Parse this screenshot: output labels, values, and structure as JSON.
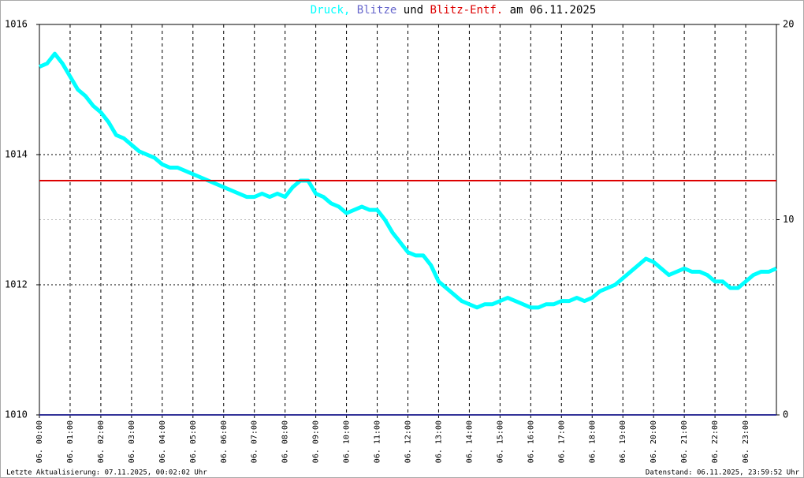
{
  "chart_data": {
    "type": "line",
    "title_connectors": [
      "und",
      "am 06.11.2025"
    ],
    "xlim": [
      0,
      24
    ],
    "xticks": [
      {
        "value": 0,
        "label": "06. 00:00"
      },
      {
        "value": 1,
        "label": "06. 01:00"
      },
      {
        "value": 2,
        "label": "06. 02:00"
      },
      {
        "value": 3,
        "label": "06. 03:00"
      },
      {
        "value": 4,
        "label": "06. 04:00"
      },
      {
        "value": 5,
        "label": "06. 05:00"
      },
      {
        "value": 6,
        "label": "06. 06:00"
      },
      {
        "value": 7,
        "label": "06. 07:00"
      },
      {
        "value": 8,
        "label": "06. 08:00"
      },
      {
        "value": 9,
        "label": "06. 09:00"
      },
      {
        "value": 10,
        "label": "06. 10:00"
      },
      {
        "value": 11,
        "label": "06. 11:00"
      },
      {
        "value": 12,
        "label": "06. 12:00"
      },
      {
        "value": 13,
        "label": "06. 13:00"
      },
      {
        "value": 14,
        "label": "06. 14:00"
      },
      {
        "value": 15,
        "label": "06. 15:00"
      },
      {
        "value": 16,
        "label": "06. 16:00"
      },
      {
        "value": 17,
        "label": "06. 17:00"
      },
      {
        "value": 18,
        "label": "06. 18:00"
      },
      {
        "value": 19,
        "label": "06. 19:00"
      },
      {
        "value": 20,
        "label": "06. 20:00"
      },
      {
        "value": 21,
        "label": "06. 21:00"
      },
      {
        "value": 22,
        "label": "06. 22:00"
      },
      {
        "value": 23,
        "label": "06. 23:00"
      }
    ],
    "ylim": [
      1010,
      1016
    ],
    "yticks": [
      1010,
      1012,
      1014,
      1016
    ],
    "y2lim": [
      0,
      20
    ],
    "y2ticks": [
      0,
      10,
      20
    ],
    "y2tick_colors": [
      "#000000",
      "#cc0000",
      "#000000"
    ],
    "grid": true,
    "x": [
      0,
      0.25,
      0.5,
      0.75,
      1,
      1.25,
      1.5,
      1.75,
      2,
      2.25,
      2.5,
      2.75,
      3,
      3.25,
      3.5,
      3.75,
      4,
      4.25,
      4.5,
      4.75,
      5,
      5.25,
      5.5,
      5.75,
      6,
      6.25,
      6.5,
      6.75,
      7,
      7.25,
      7.5,
      7.75,
      8,
      8.25,
      8.5,
      8.75,
      9,
      9.25,
      9.5,
      9.75,
      10,
      10.25,
      10.5,
      10.75,
      11,
      11.25,
      11.5,
      11.75,
      12,
      12.25,
      12.5,
      12.75,
      13,
      13.25,
      13.5,
      13.75,
      14,
      14.25,
      14.5,
      14.75,
      15,
      15.25,
      15.5,
      15.75,
      16,
      16.25,
      16.5,
      16.75,
      17,
      17.25,
      17.5,
      17.75,
      18,
      18.25,
      18.5,
      18.75,
      19,
      19.25,
      19.5,
      19.75,
      20,
      20.25,
      20.5,
      20.75,
      21,
      21.25,
      21.5,
      21.75,
      22,
      22.25,
      22.5,
      22.75,
      23,
      23.25,
      23.5,
      23.75,
      24
    ],
    "series": [
      {
        "name": "Druck,",
        "color": "#00ffff",
        "values": [
          1015.35,
          1015.4,
          1015.55,
          1015.4,
          1015.2,
          1015.0,
          1014.9,
          1014.75,
          1014.65,
          1014.5,
          1014.3,
          1014.25,
          1014.15,
          1014.05,
          1014.0,
          1013.95,
          1013.85,
          1013.8,
          1013.8,
          1013.75,
          1013.7,
          1013.65,
          1013.6,
          1013.55,
          1013.5,
          1013.45,
          1013.4,
          1013.35,
          1013.35,
          1013.4,
          1013.35,
          1013.4,
          1013.35,
          1013.5,
          1013.6,
          1013.6,
          1013.4,
          1013.35,
          1013.25,
          1013.2,
          1013.1,
          1013.15,
          1013.2,
          1013.15,
          1013.15,
          1013.0,
          1012.8,
          1012.65,
          1012.5,
          1012.45,
          1012.45,
          1012.3,
          1012.05,
          1011.95,
          1011.85,
          1011.75,
          1011.7,
          1011.65,
          1011.7,
          1011.7,
          1011.75,
          1011.8,
          1011.75,
          1011.7,
          1011.65,
          1011.65,
          1011.7,
          1011.7,
          1011.75,
          1011.75,
          1011.8,
          1011.75,
          1011.8,
          1011.9,
          1011.95,
          1012.0,
          1012.1,
          1012.2,
          1012.3,
          1012.4,
          1012.35,
          1012.25,
          1012.15,
          1012.2,
          1012.25,
          1012.2,
          1012.2,
          1012.15,
          1012.05,
          1012.05,
          1011.95,
          1011.95,
          1012.05,
          1012.15,
          1012.2,
          1012.2,
          1012.25
        ]
      },
      {
        "name": "Blitze",
        "color": "#333399",
        "axis": "y2",
        "x": [
          0,
          24
        ],
        "values": [
          0,
          0
        ]
      },
      {
        "name": "Blitz-Entf.",
        "color": "#dd0000",
        "axis": "y2",
        "x": [
          0,
          24
        ],
        "values": [
          12,
          12
        ]
      }
    ]
  },
  "footer": {
    "left": "Letzte Aktualisierung: 07.11.2025, 00:02:02 Uhr",
    "right": "Datenstand: 06.11.2025, 23:59:52 Uhr"
  }
}
